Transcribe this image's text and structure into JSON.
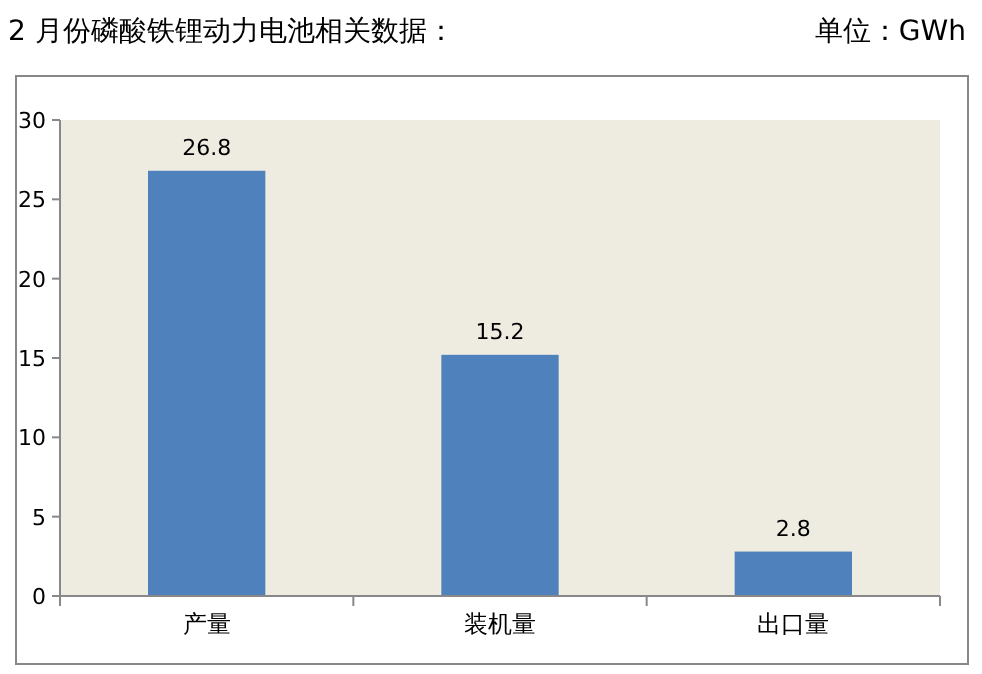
{
  "chart_data": {
    "type": "bar",
    "title": "2 月份磷酸铁锂动力电池相关数据：",
    "annotations": [
      "单位：GWh"
    ],
    "categories": [
      "产量",
      "装机量",
      "出口量"
    ],
    "values": [
      26.8,
      15.2,
      2.8
    ],
    "color": "#4f81bd",
    "ylim": [
      0,
      30
    ],
    "yticks": [
      0,
      5,
      10,
      15,
      20,
      25,
      30
    ],
    "grid": false,
    "data_labels": true
  }
}
